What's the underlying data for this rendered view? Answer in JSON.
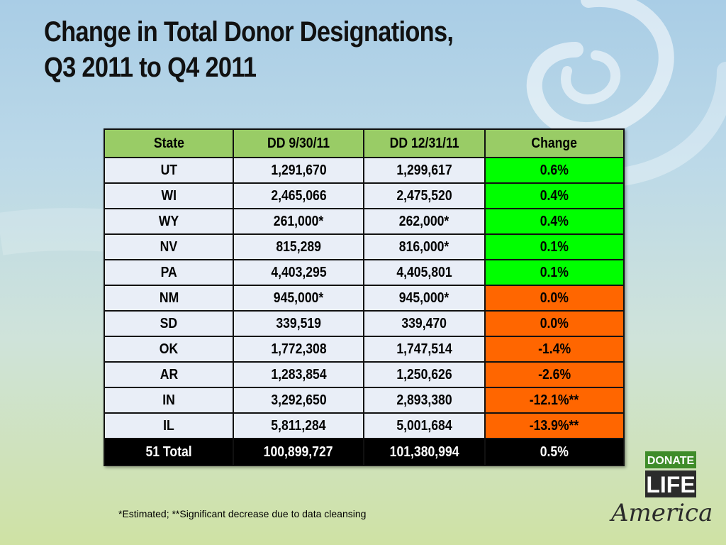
{
  "slide": {
    "title_line1": "Change in Total Donor Designations,",
    "title_line2": "Q3 2011 to Q4 2011"
  },
  "table": {
    "headers": [
      "State",
      "DD 9/30/11",
      "DD 12/31/11",
      "Change"
    ],
    "header_color": "#99cc66",
    "rows": [
      {
        "state": "UT",
        "dd1": "1,291,670",
        "dd2": "1,299,617",
        "change": "0.6%",
        "status": "increase"
      },
      {
        "state": "WI",
        "dd1": "2,465,066",
        "dd2": "2,475,520",
        "change": "0.4%",
        "status": "increase"
      },
      {
        "state": "WY",
        "dd1": "261,000*",
        "dd2": "262,000*",
        "change": "0.4%",
        "status": "increase"
      },
      {
        "state": "NV",
        "dd1": "815,289",
        "dd2": "816,000*",
        "change": "0.1%",
        "status": "increase"
      },
      {
        "state": "PA",
        "dd1": "4,403,295",
        "dd2": "4,405,801",
        "change": "0.1%",
        "status": "increase"
      },
      {
        "state": "NM",
        "dd1": "945,000*",
        "dd2": "945,000*",
        "change": "0.0%",
        "status": "decrease"
      },
      {
        "state": "SD",
        "dd1": "339,519",
        "dd2": "339,470",
        "change": "0.0%",
        "status": "decrease"
      },
      {
        "state": "OK",
        "dd1": "1,772,308",
        "dd2": "1,747,514",
        "change": "-1.4%",
        "status": "decrease"
      },
      {
        "state": "AR",
        "dd1": "1,283,854",
        "dd2": "1,250,626",
        "change": "-2.6%",
        "status": "decrease"
      },
      {
        "state": "IN",
        "dd1": "3,292,650",
        "dd2": "2,893,380",
        "change": "-12.1%**",
        "status": "decrease"
      },
      {
        "state": "IL",
        "dd1": "5,811,284",
        "dd2": "5,001,684",
        "change": "-13.9%**",
        "status": "decrease"
      }
    ],
    "total": {
      "state": "51 Total",
      "dd1": "100,899,727",
      "dd2": "101,380,994",
      "change": "0.5%"
    },
    "status_colors": {
      "increase": "#00ff00",
      "decrease": "#ff6600"
    }
  },
  "footnote": "*Estimated; **Significant decrease due to data cleansing",
  "logo": {
    "line1": "DONATE",
    "line2": "LIFE",
    "line3": "America",
    "colors": {
      "green": "#3f8c2a",
      "dark": "#2b2b2b"
    }
  }
}
